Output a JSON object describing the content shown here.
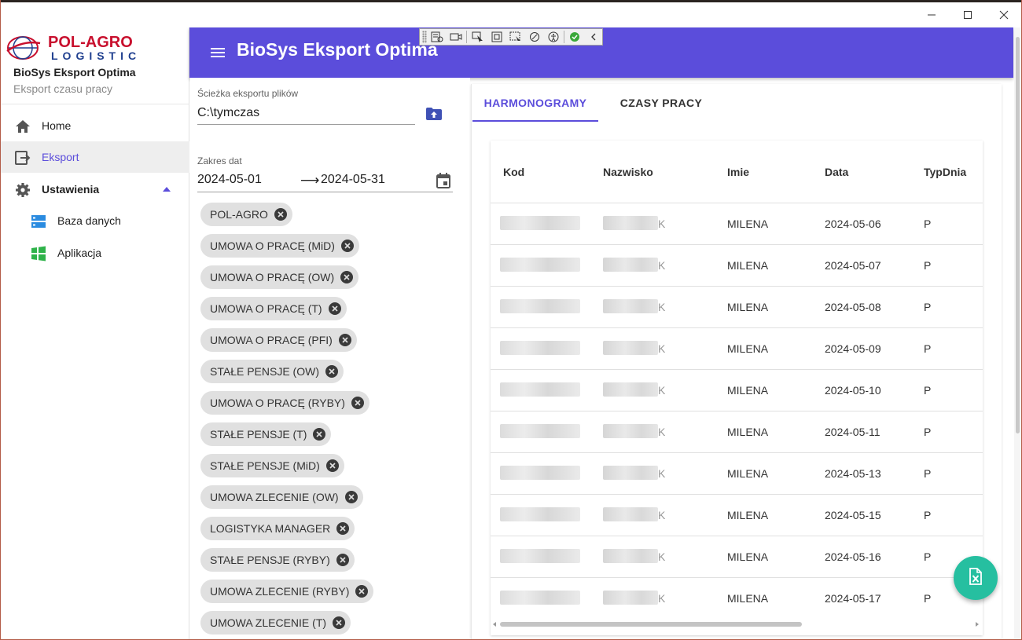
{
  "window": {
    "minimize_icon": "minimize-icon",
    "maximize_icon": "maximize-icon",
    "close_icon": "close-icon"
  },
  "sidebar": {
    "logo_line1": "POL-AGRO",
    "logo_line2": "LOGISTIC",
    "title": "BioSys Eksport Optima",
    "subtitle": "Eksport czasu pracy",
    "items": [
      {
        "label": "Home",
        "icon": "home-icon"
      },
      {
        "label": "Eksport",
        "icon": "export-icon"
      },
      {
        "label": "Ustawienia",
        "icon": "gear-icon"
      },
      {
        "label": "Baza danych",
        "icon": "database-icon"
      },
      {
        "label": "Aplikacja",
        "icon": "windows-icon"
      }
    ]
  },
  "app_bar": {
    "title": "BioSys Eksport Optima"
  },
  "form": {
    "path_label": "Ścieżka eksportu plików",
    "path_value": "C:\\tymczas",
    "date_label": "Zakres dat",
    "date_from": "2024-05-01",
    "date_arrow": "⟶",
    "date_to": "2024-05-31",
    "chips": [
      "POL-AGRO",
      "UMOWA O PRACĘ (MiD)",
      "UMOWA O PRACĘ (OW)",
      "UMOWA O PRACĘ (T)",
      "UMOWA O PRACĘ (PFI)",
      "STAŁE PENSJE (OW)",
      "UMOWA O PRACĘ (RYBY)",
      "STAŁE PENSJE (T)",
      "STAŁE PENSJE (MiD)",
      "UMOWA ZLECENIE (OW)",
      "LOGISTYKA MANAGER",
      "STAŁE PENSJE (RYBY)",
      "UMOWA ZLECENIE (RYBY)",
      "UMOWA ZLECENIE (T)"
    ]
  },
  "tabs": [
    {
      "label": "HARMONOGRAMY",
      "active": true
    },
    {
      "label": "CZASY PRACY",
      "active": false
    }
  ],
  "table": {
    "columns": [
      "Kod",
      "Nazwisko",
      "Imie",
      "Data",
      "TypDnia"
    ],
    "rows": [
      {
        "nazwisko_tail": "K",
        "imie": "MILENA",
        "data": "2024-05-06",
        "typ": "P"
      },
      {
        "nazwisko_tail": "K",
        "imie": "MILENA",
        "data": "2024-05-07",
        "typ": "P"
      },
      {
        "nazwisko_tail": "K",
        "imie": "MILENA",
        "data": "2024-05-08",
        "typ": "P"
      },
      {
        "nazwisko_tail": "K",
        "imie": "MILENA",
        "data": "2024-05-09",
        "typ": "P"
      },
      {
        "nazwisko_tail": "K",
        "imie": "MILENA",
        "data": "2024-05-10",
        "typ": "P"
      },
      {
        "nazwisko_tail": "K",
        "imie": "MILENA",
        "data": "2024-05-11",
        "typ": "P"
      },
      {
        "nazwisko_tail": "K",
        "imie": "MILENA",
        "data": "2024-05-13",
        "typ": "P"
      },
      {
        "nazwisko_tail": "K",
        "imie": "MILENA",
        "data": "2024-05-15",
        "typ": "P"
      },
      {
        "nazwisko_tail": "K",
        "imie": "MILENA",
        "data": "2024-05-16",
        "typ": "P"
      },
      {
        "nazwisko_tail": "K",
        "imie": "MILENA",
        "data": "2024-05-17",
        "typ": "P"
      }
    ]
  },
  "colors": {
    "primary": "#5b4ddb",
    "fab": "#26bfa0",
    "window_border": "#b35c48"
  },
  "fab_icon": "excel-export-icon"
}
